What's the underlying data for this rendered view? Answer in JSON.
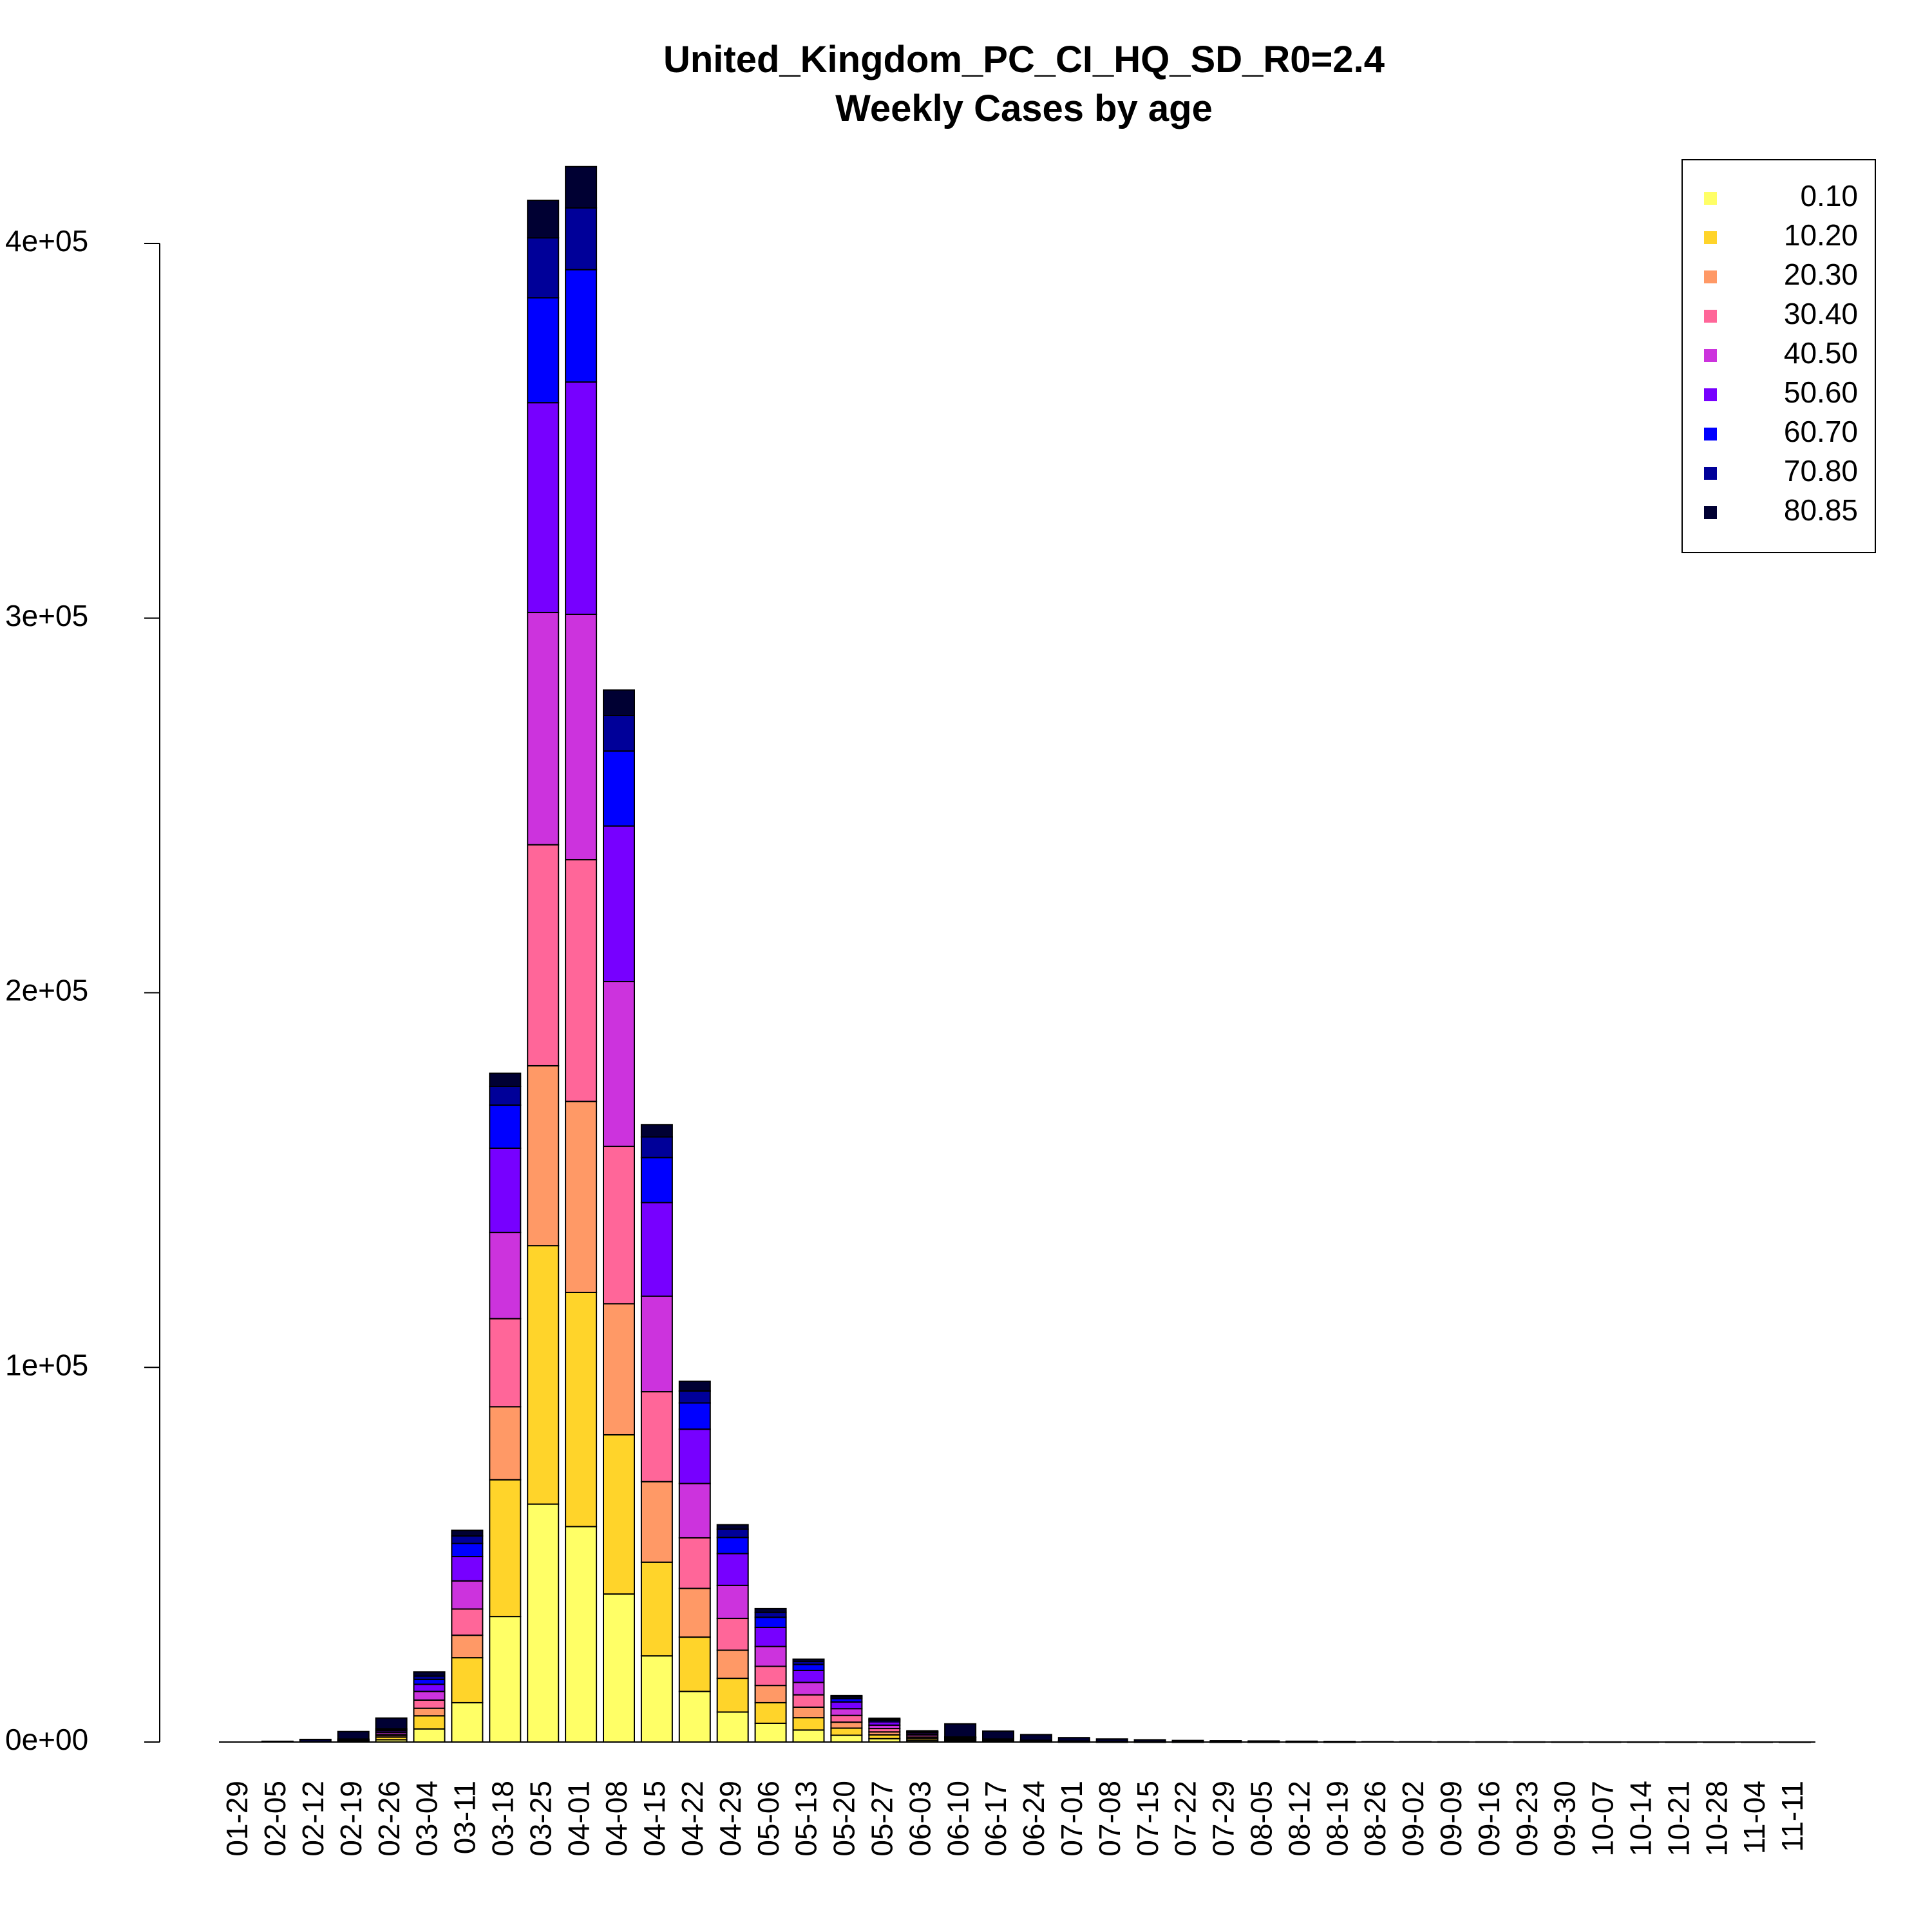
{
  "chart_data": {
    "type": "bar",
    "stacked": true,
    "title": "United_Kingdom_PC_CI_HQ_SD_R0=2.4",
    "subtitle": "Weekly Cases by age",
    "xlabel": "",
    "ylabel": "",
    "ylim": [
      0,
      425000
    ],
    "y_ticks": [
      {
        "value": 0,
        "label": "0e+00"
      },
      {
        "value": 100000,
        "label": "1e+05"
      },
      {
        "value": 200000,
        "label": "2e+05"
      },
      {
        "value": 300000,
        "label": "3e+05"
      },
      {
        "value": 400000,
        "label": "4e+05"
      }
    ],
    "grid": false,
    "legend_position": "top-right",
    "categories": [
      "01-29",
      "02-05",
      "02-12",
      "02-19",
      "02-26",
      "03-04",
      "03-11",
      "03-18",
      "03-25",
      "04-01",
      "04-08",
      "04-15",
      "04-22",
      "04-29",
      "05-06",
      "05-13",
      "05-20",
      "05-27",
      "06-03",
      "06-10",
      "06-17",
      "06-24",
      "07-01",
      "07-08",
      "07-15",
      "07-22",
      "07-29",
      "08-05",
      "08-12",
      "08-19",
      "08-26",
      "09-02",
      "09-09",
      "09-16",
      "09-23",
      "09-30",
      "10-07",
      "10-14",
      "10-21",
      "10-28",
      "11-04",
      "11-11"
    ],
    "series": [
      {
        "name": "0.10",
        "color": "#FFFF66",
        "values": [
          0,
          0,
          0,
          100,
          600,
          3500,
          10500,
          33500,
          63500,
          57500,
          39500,
          23000,
          13500,
          8000,
          5000,
          3200,
          1800,
          900,
          400,
          200,
          120,
          70,
          40,
          25,
          15,
          10,
          6,
          4,
          2,
          1,
          0,
          0,
          0,
          0,
          0,
          0,
          0,
          0,
          0,
          0,
          0,
          0
        ]
      },
      {
        "name": "10.20",
        "color": "#FFD42A",
        "values": [
          0,
          0,
          0,
          100,
          700,
          3500,
          12000,
          36500,
          69000,
          62500,
          42500,
          25000,
          14500,
          9000,
          5500,
          3300,
          1900,
          1000,
          450,
          220,
          130,
          75,
          45,
          28,
          16,
          10,
          6,
          4,
          2,
          1,
          0,
          0,
          0,
          0,
          0,
          0,
          0,
          0,
          0,
          0,
          0,
          0
        ]
      },
      {
        "name": "20.30",
        "color": "#FF9966",
        "values": [
          0,
          0,
          0,
          100,
          400,
          2000,
          6000,
          19500,
          48000,
          51000,
          35000,
          21500,
          13000,
          7500,
          4600,
          2800,
          1600,
          800,
          380,
          180,
          110,
          65,
          38,
          22,
          13,
          8,
          5,
          3,
          2,
          1,
          0,
          0,
          0,
          0,
          0,
          0,
          0,
          0,
          0,
          0,
          0,
          0
        ]
      },
      {
        "name": "30.40",
        "color": "#FF6699",
        "values": [
          0,
          0,
          0,
          100,
          400,
          2200,
          7000,
          23500,
          59000,
          64500,
          42000,
          24000,
          13500,
          8500,
          5100,
          3300,
          1800,
          900,
          420,
          200,
          120,
          70,
          40,
          24,
          14,
          9,
          5,
          3,
          2,
          1,
          0,
          0,
          0,
          0,
          0,
          0,
          0,
          0,
          0,
          0,
          0,
          0
        ]
      },
      {
        "name": "40.50",
        "color": "#CC33DD",
        "values": [
          0,
          0,
          0,
          100,
          500,
          2300,
          7500,
          23000,
          62000,
          65500,
          44000,
          25500,
          14500,
          8800,
          5300,
          3300,
          1800,
          900,
          420,
          200,
          120,
          70,
          40,
          24,
          14,
          9,
          5,
          3,
          2,
          1,
          0,
          0,
          0,
          0,
          0,
          0,
          0,
          0,
          0,
          0,
          0,
          0
        ]
      },
      {
        "name": "50.60",
        "color": "#7700FF",
        "values": [
          0,
          0,
          0,
          100,
          400,
          1900,
          6500,
          22500,
          56000,
          62000,
          41500,
          25000,
          14500,
          8500,
          5100,
          3200,
          1800,
          900,
          400,
          200,
          120,
          70,
          40,
          24,
          14,
          9,
          5,
          3,
          2,
          1,
          0,
          0,
          0,
          0,
          0,
          0,
          0,
          0,
          0,
          0,
          0,
          0
        ]
      },
      {
        "name": "60.70",
        "color": "#0000FF",
        "values": [
          0,
          0,
          0,
          100,
          300,
          1300,
          3500,
          11500,
          28000,
          30000,
          20000,
          12000,
          7000,
          4300,
          2700,
          1600,
          900,
          450,
          200,
          100,
          60,
          35,
          20,
          12,
          7,
          4,
          3,
          2,
          1,
          0,
          0,
          0,
          0,
          0,
          0,
          0,
          0,
          0,
          0,
          0,
          0,
          0
        ]
      },
      {
        "name": "70.80",
        "color": "#000099",
        "values": [
          0,
          0,
          0,
          100,
          250,
          900,
          2000,
          5000,
          16000,
          16500,
          9500,
          5500,
          3200,
          2200,
          1300,
          800,
          450,
          220,
          100,
          50,
          30,
          18,
          10,
          6,
          4,
          2,
          1,
          1,
          0,
          0,
          0,
          0,
          0,
          0,
          0,
          0,
          0,
          0,
          0,
          0,
          0,
          0
        ]
      },
      {
        "name": "80.85",
        "color": "#000033",
        "values": [
          0,
          200,
          700,
          2000,
          2850,
          1100,
          1500,
          3500,
          10000,
          11000,
          6800,
          3300,
          2600,
          1200,
          1000,
          600,
          350,
          270,
          230,
          3500,
          2100,
          1500,
          900,
          650,
          500,
          350,
          300,
          250,
          200,
          150,
          100,
          80,
          60,
          50,
          40,
          30,
          25,
          20,
          15,
          10,
          8,
          5
        ]
      }
    ]
  }
}
